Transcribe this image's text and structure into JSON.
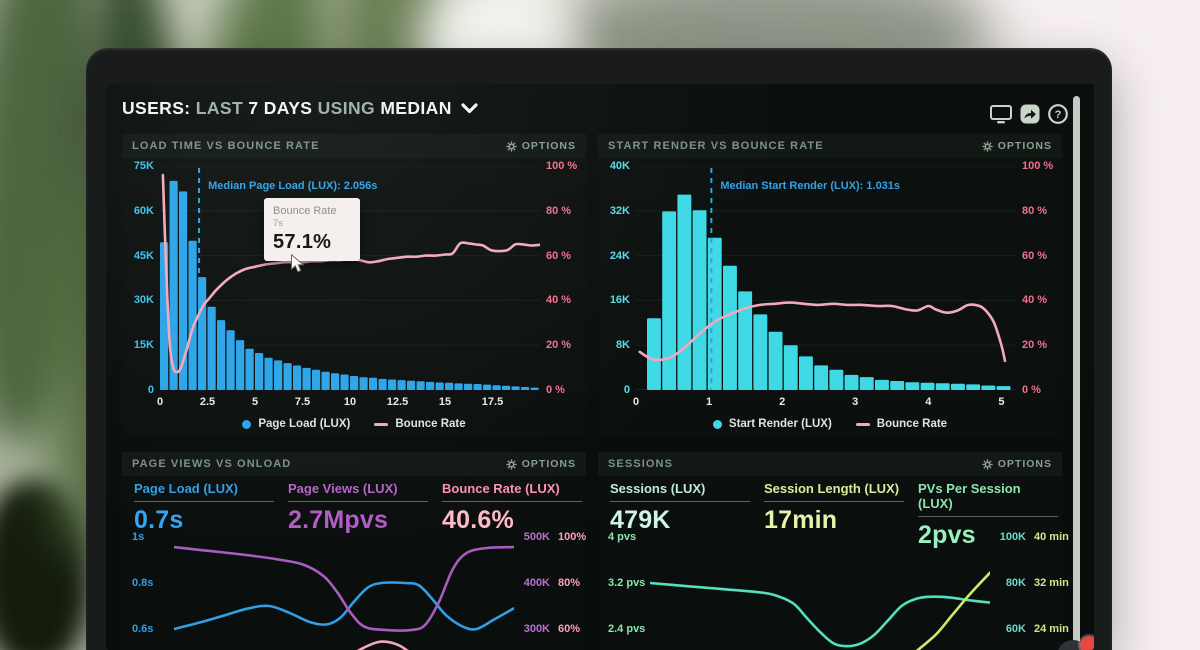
{
  "colors": {
    "bar_blue": "#2ba4e8",
    "bar_cyan": "#3fd9e6",
    "line_pink": "#f2a9bd",
    "median_blue": "#2fa3e8",
    "axis_cyan": "#3cc3ee",
    "axis_cyan2": "#5adbe8",
    "pct_pink": "#f2708f",
    "spark_blue": "#2f9fe8",
    "spark_purple": "#a85cc0",
    "spark_teal": "#54dfbe",
    "spark_yellow": "#cbe96f",
    "purple_k": "#bb6fd0",
    "pink_light": "#ff9fb8",
    "teal_k": "#67d9cf",
    "green_min": "#cfe98a",
    "green_axis": "#8ce4ae"
  },
  "header": {
    "part1": "USERS:",
    "part2": " LAST ",
    "part3": "7 DAYS",
    "part4": " USING ",
    "part5": "MEDIAN"
  },
  "panels": {
    "load_time": {
      "title": "LOAD TIME VS BOUNCE RATE",
      "options": "OPTIONS",
      "tooltip": {
        "title": "Bounce Rate",
        "sub": "7s",
        "value": "57.1%"
      }
    },
    "start_render": {
      "title": "START RENDER VS BOUNCE RATE",
      "options": "OPTIONS"
    },
    "page_views": {
      "title": "PAGE VIEWS VS ONLOAD",
      "options": "OPTIONS",
      "metrics": [
        {
          "label": "Page Load (LUX)",
          "value": "0.7s",
          "label_color": "#2f9fe8",
          "value_color": "#35a5f0"
        },
        {
          "label": "Page Views (LUX)",
          "value": "2.7Mpvs",
          "label_color": "#b763cb",
          "value_color": "#b15cc6"
        },
        {
          "label": "Bounce Rate (LUX)",
          "value": "40.6%",
          "label_color": "#ff91b1",
          "value_color": "#ffbac9"
        }
      ]
    },
    "sessions": {
      "title": "SESSIONS",
      "options": "OPTIONS",
      "metrics": [
        {
          "label": "Sessions (LUX)",
          "value": "479K",
          "label_color": "#bfe9dd",
          "value_color": "#cff3e8"
        },
        {
          "label": "Session Length (LUX)",
          "value": "17min",
          "label_color": "#dcea9e",
          "value_color": "#e7f2ab"
        },
        {
          "label": "PVs Per Session (LUX)",
          "value": "2pvs",
          "label_color": "#8ce4ae",
          "value_color": "#9defbd"
        }
      ]
    }
  },
  "chart_data": [
    {
      "id": "load-time-vs-bounce-rate",
      "type": "bar",
      "title": "LOAD TIME VS BOUNCE RATE",
      "x_unit": "seconds",
      "x_max": 20,
      "x_ticks": [
        0,
        2.5,
        5,
        7.5,
        10,
        12.5,
        15,
        17.5
      ],
      "y_left": {
        "max": 75000,
        "ticks": [
          "75K",
          "60K",
          "45K",
          "30K",
          "15K",
          "0"
        ]
      },
      "y_right": {
        "max": 100,
        "ticks": [
          "100 %",
          "80 %",
          "60 %",
          "40 %",
          "20 %",
          "0 %"
        ]
      },
      "bars": {
        "name": "Page Load (LUX)",
        "start": 0,
        "bin_width": 0.5,
        "values_thousands": [
          49.5,
          70,
          66.5,
          50,
          37.8,
          27.9,
          23.4,
          20,
          16.7,
          13.8,
          12.4,
          10.8,
          9.9,
          9,
          8.2,
          7.4,
          6.8,
          6.1,
          5.6,
          5.2,
          4.7,
          4.3,
          4.1,
          3.7,
          3.5,
          3.3,
          3.1,
          2.9,
          2.7,
          2.5,
          2.4,
          2.2,
          2.1,
          2,
          1.8,
          1.6,
          1.4,
          1.2,
          1,
          0.8
        ]
      },
      "line": {
        "name": "Bounce Rate",
        "points": [
          [
            0.15,
            96
          ],
          [
            0.3,
            60
          ],
          [
            0.5,
            22
          ],
          [
            0.7,
            10
          ],
          [
            0.9,
            8
          ],
          [
            1.1,
            10
          ],
          [
            1.4,
            18
          ],
          [
            1.7,
            27
          ],
          [
            2.0,
            33
          ],
          [
            2.3,
            38
          ],
          [
            2.6,
            41
          ],
          [
            3.0,
            45
          ],
          [
            3.5,
            49
          ],
          [
            4.0,
            52
          ],
          [
            4.5,
            54
          ],
          [
            5.0,
            55
          ],
          [
            5.5,
            56
          ],
          [
            6.0,
            56.5
          ],
          [
            6.5,
            57
          ],
          [
            7.0,
            57.1
          ],
          [
            7.5,
            57
          ],
          [
            8.0,
            57.5
          ],
          [
            8.5,
            57.5
          ],
          [
            9.0,
            58
          ],
          [
            9.5,
            58
          ],
          [
            10.0,
            58.5
          ],
          [
            10.5,
            58
          ],
          [
            11.0,
            57
          ],
          [
            11.5,
            57.5
          ],
          [
            12.0,
            58.5
          ],
          [
            12.5,
            59
          ],
          [
            13.0,
            59.5
          ],
          [
            13.5,
            59.5
          ],
          [
            14.0,
            60
          ],
          [
            14.5,
            60
          ],
          [
            15.0,
            60.5
          ],
          [
            15.4,
            61
          ],
          [
            15.8,
            65.5
          ],
          [
            16.2,
            65.5
          ],
          [
            16.6,
            65
          ],
          [
            17.0,
            64.5
          ],
          [
            17.4,
            62.5
          ],
          [
            17.8,
            62
          ],
          [
            18.3,
            62.5
          ],
          [
            18.7,
            65
          ],
          [
            19.1,
            65
          ],
          [
            19.5,
            64.5
          ],
          [
            20.0,
            64.8
          ]
        ]
      },
      "median": {
        "x": 2.056,
        "label": "Median Page Load (LUX): 2.056s"
      },
      "legend": [
        "Page Load (LUX)",
        "Bounce Rate"
      ]
    },
    {
      "id": "start-render-vs-bounce-rate",
      "type": "bar",
      "title": "START RENDER VS BOUNCE RATE",
      "x_unit": "seconds",
      "x_max": 5.2,
      "x_ticks": [
        0,
        1,
        2,
        3,
        4,
        5
      ],
      "y_left": {
        "max": 40000,
        "ticks": [
          "40K",
          "32K",
          "24K",
          "16K",
          "8K",
          "0"
        ]
      },
      "y_right": {
        "max": 100,
        "ticks": [
          "100 %",
          "80 %",
          "60 %",
          "40 %",
          "20 %",
          "0 %"
        ]
      },
      "bars": {
        "name": "Start Render (LUX)",
        "start": 0.15,
        "bin_width": 0.208,
        "values_thousands": [
          12.8,
          31.9,
          34.9,
          32.1,
          27.2,
          22.2,
          17.6,
          13.5,
          10.4,
          8,
          6,
          4.4,
          3.6,
          2.7,
          2.3,
          1.8,
          1.6,
          1.4,
          1.3,
          1.2,
          1.1,
          1,
          0.8,
          0.7
        ]
      },
      "line": {
        "name": "Bounce Rate",
        "points": [
          [
            0.05,
            17
          ],
          [
            0.2,
            14
          ],
          [
            0.35,
            13.5
          ],
          [
            0.5,
            15
          ],
          [
            0.7,
            20
          ],
          [
            0.9,
            26
          ],
          [
            1.1,
            31
          ],
          [
            1.3,
            34
          ],
          [
            1.5,
            36.5
          ],
          [
            1.7,
            38
          ],
          [
            1.9,
            38.5
          ],
          [
            2.1,
            39
          ],
          [
            2.3,
            38.5
          ],
          [
            2.5,
            38
          ],
          [
            2.7,
            38.5
          ],
          [
            2.9,
            38
          ],
          [
            3.1,
            38
          ],
          [
            3.3,
            37.5
          ],
          [
            3.5,
            37.5
          ],
          [
            3.7,
            36
          ],
          [
            3.85,
            35.5
          ],
          [
            4.0,
            37.5
          ],
          [
            4.1,
            36
          ],
          [
            4.25,
            34.5
          ],
          [
            4.4,
            35.5
          ],
          [
            4.55,
            38
          ],
          [
            4.7,
            37.5
          ],
          [
            4.8,
            35
          ],
          [
            4.9,
            30
          ],
          [
            5.0,
            20
          ],
          [
            5.05,
            13
          ]
        ]
      },
      "median": {
        "x": 1.031,
        "label": "Median Start Render (LUX): 1.031s"
      },
      "legend": [
        "Start Render (LUX)",
        "Bounce Rate"
      ]
    },
    {
      "id": "page-views-vs-onload-trend",
      "type": "line",
      "title": "PAGE VIEWS VS ONLOAD",
      "axis_left": [
        "1s",
        "0.8s",
        "0.6s"
      ],
      "axis_right_col1": [
        "500K",
        "400K",
        "300K"
      ],
      "axis_right_col2": [
        "100%",
        "80%",
        "60%"
      ],
      "series": [
        {
          "name": "Page Load (LUX)",
          "unit": "s",
          "color_key": "spark_blue",
          "range_top": 1.0,
          "range_bottom": 0.6,
          "points": [
            [
              0,
              0.6
            ],
            [
              8,
              0.63
            ],
            [
              15,
              0.66
            ],
            [
              22,
              0.69
            ],
            [
              28,
              0.7
            ],
            [
              34,
              0.67
            ],
            [
              40,
              0.63
            ],
            [
              45,
              0.62
            ],
            [
              49,
              0.65
            ],
            [
              53,
              0.72
            ],
            [
              57,
              0.78
            ],
            [
              61,
              0.8
            ],
            [
              68,
              0.8
            ],
            [
              72,
              0.79
            ],
            [
              76,
              0.73
            ],
            [
              80,
              0.66
            ],
            [
              85,
              0.61
            ],
            [
              89,
              0.6
            ],
            [
              94,
              0.64
            ],
            [
              100,
              0.69
            ]
          ]
        },
        {
          "name": "Page Views (LUX)",
          "unit": "K",
          "color_key": "spark_purple",
          "range_top": 500,
          "range_bottom": 300,
          "points": [
            [
              0,
              478
            ],
            [
              10,
              470
            ],
            [
              20,
              462
            ],
            [
              30,
              452
            ],
            [
              38,
              440
            ],
            [
              44,
              415
            ],
            [
              48,
              380
            ],
            [
              52,
              335
            ],
            [
              56,
              305
            ],
            [
              62,
              298
            ],
            [
              70,
              298
            ],
            [
              74,
              310
            ],
            [
              78,
              360
            ],
            [
              82,
              430
            ],
            [
              86,
              465
            ],
            [
              92,
              476
            ],
            [
              100,
              478
            ]
          ]
        },
        {
          "name": "Bounce Rate (LUX)",
          "unit": "%",
          "color_key": "line_pink",
          "range_top": 100,
          "range_bottom": 60,
          "points": [
            [
              50,
              47
            ],
            [
              56,
              52
            ],
            [
              61,
              54.5
            ],
            [
              66,
              53
            ],
            [
              71,
              48
            ]
          ]
        }
      ]
    },
    {
      "id": "sessions-trend",
      "type": "line",
      "title": "SESSIONS",
      "axis_left": [
        "4 pvs",
        "3.2 pvs",
        "2.4 pvs"
      ],
      "axis_right_col1": [
        "100K",
        "80K",
        "60K"
      ],
      "axis_right_col2": [
        "40 min",
        "32 min",
        "24 min"
      ],
      "series": [
        {
          "name": "PVs Per Session (LUX)",
          "unit": "pvs",
          "color_key": "spark_teal",
          "range_top": 4,
          "range_bottom": 2.4,
          "points": [
            [
              0,
              3.2
            ],
            [
              10,
              3.15
            ],
            [
              20,
              3.1
            ],
            [
              30,
              3.05
            ],
            [
              36,
              3.0
            ],
            [
              42,
              2.85
            ],
            [
              46,
              2.6
            ],
            [
              50,
              2.35
            ],
            [
              54,
              2.15
            ],
            [
              58,
              2.1
            ],
            [
              62,
              2.15
            ],
            [
              66,
              2.3
            ],
            [
              70,
              2.55
            ],
            [
              74,
              2.8
            ],
            [
              78,
              2.92
            ],
            [
              82,
              2.96
            ],
            [
              88,
              2.95
            ],
            [
              94,
              2.9
            ],
            [
              100,
              2.86
            ]
          ]
        },
        {
          "name": "Session Length (LUX)",
          "unit": "min",
          "color_key": "spark_yellow",
          "range_top": 40,
          "range_bottom": 24,
          "points": [
            [
              77,
              19.5
            ],
            [
              84,
              23
            ],
            [
              89,
              26.5
            ],
            [
              94,
              30
            ],
            [
              100,
              33.8
            ]
          ]
        }
      ]
    }
  ]
}
